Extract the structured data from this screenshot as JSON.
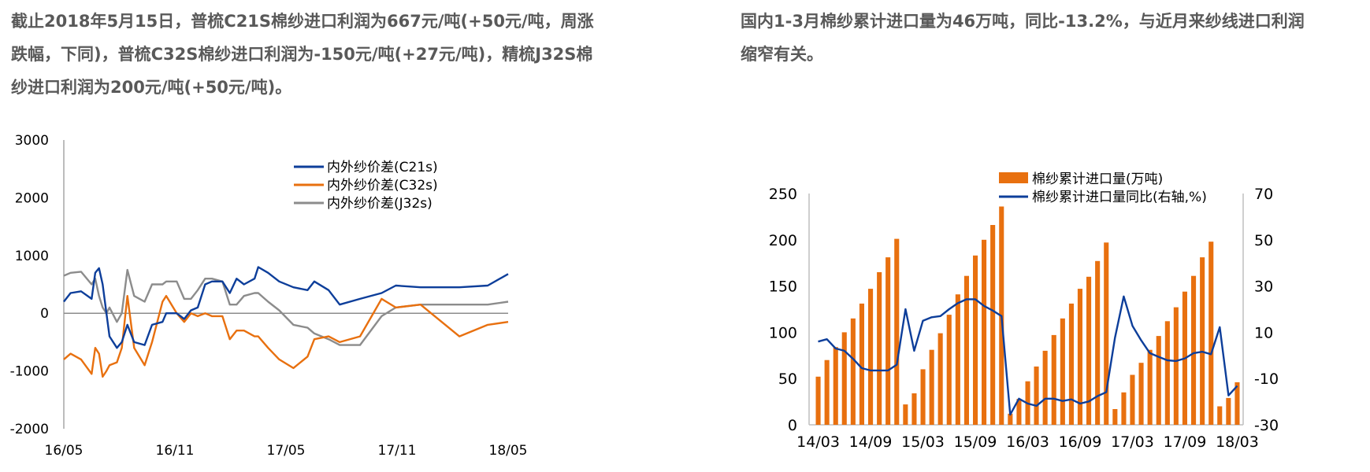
{
  "text_left": {
    "lines": [
      "截止2018年5月15日，普梳C21S棉纱进口利润为667元/吨(+50元/吨，周涨",
      "跌幅，下同)，普梳C32S棉纱进口利润为-150元/吨(+27元/吨)，精梳J32S棉",
      "纱进口利润为200元/吨(+50元/吨)。"
    ]
  },
  "text_right": {
    "lines": [
      "国内1-3月棉纱累计进口量为46万吨，同比-13.2%，与近月来纱线进口利润",
      "缩窄有关。"
    ]
  },
  "chart_data": [
    {
      "type": "line",
      "title": "",
      "xlabel": "",
      "ylabel": "",
      "ylim": [
        -2000,
        3000
      ],
      "yticks": [
        "3000",
        "2000",
        "1000",
        "0",
        "-1000",
        "-2000"
      ],
      "xticks": [
        "16/05",
        "16/11",
        "17/05",
        "17/11",
        "18/05"
      ],
      "xlim": [
        "2016-05-01",
        "2018-05-01"
      ],
      "grid": false,
      "legend": "top-right",
      "x": [
        "2016-05-01",
        "2016-05-12",
        "2016-05-29",
        "2016-06-16",
        "2016-06-22",
        "2016-06-28",
        "2016-07-04",
        "2016-07-10",
        "2016-07-15",
        "2016-07-27",
        "2016-08-05",
        "2016-08-14",
        "2016-08-25",
        "2016-09-12",
        "2016-09-24",
        "2016-10-11",
        "2016-10-17",
        "2016-11-04",
        "2016-11-16",
        "2016-11-27",
        "2016-12-08",
        "2016-12-20",
        "2017-01-01",
        "2017-01-18",
        "2017-01-30",
        "2017-02-11",
        "2017-02-23",
        "2017-03-10",
        "2017-03-16",
        "2017-04-02",
        "2017-04-20",
        "2017-05-13",
        "2017-06-06",
        "2017-06-17",
        "2017-07-10",
        "2017-07-28",
        "2017-09-01",
        "2017-10-06",
        "2017-10-29",
        "2017-12-09",
        "2018-02-12",
        "2018-03-28",
        "2018-05-01"
      ],
      "series": [
        {
          "name": "内外纱价差(C21s)",
          "color": "#0D3E9A",
          "values": [
            200,
            350,
            380,
            250,
            700,
            780,
            500,
            0,
            -400,
            -600,
            -500,
            -200,
            -500,
            -550,
            -200,
            -150,
            0,
            0,
            -100,
            50,
            100,
            500,
            550,
            550,
            350,
            600,
            500,
            600,
            800,
            700,
            550,
            450,
            400,
            550,
            400,
            150,
            250,
            350,
            480,
            450,
            450,
            480,
            680
          ]
        },
        {
          "name": "内外纱价差(C32s)",
          "color": "#E8700F",
          "values": [
            -800,
            -700,
            -800,
            -1050,
            -600,
            -700,
            -1100,
            -1000,
            -900,
            -850,
            -600,
            300,
            -600,
            -900,
            -500,
            200,
            300,
            0,
            -150,
            0,
            -50,
            0,
            -50,
            -50,
            -450,
            -300,
            -300,
            -400,
            -400,
            -600,
            -800,
            -950,
            -750,
            -450,
            -400,
            -500,
            -400,
            250,
            100,
            150,
            -400,
            -200,
            -150
          ]
        },
        {
          "name": "内外纱价差(J32s)",
          "color": "#8C8C8C",
          "values": [
            650,
            700,
            720,
            500,
            600,
            300,
            100,
            0,
            100,
            -150,
            0,
            750,
            300,
            200,
            500,
            500,
            550,
            550,
            250,
            250,
            400,
            600,
            600,
            550,
            150,
            150,
            300,
            350,
            350,
            200,
            50,
            -200,
            -250,
            -350,
            -450,
            -550,
            -550,
            -50,
            100,
            150,
            150,
            150,
            200
          ]
        }
      ]
    },
    {
      "type": "bar+line",
      "title": "",
      "xlabel": "",
      "ylabel": "",
      "ylim": [
        0,
        250
      ],
      "y2lim": [
        -30,
        70
      ],
      "yticks": [
        "250",
        "200",
        "150",
        "100",
        "50",
        "0"
      ],
      "y2ticks": [
        "70",
        "50",
        "30",
        "10",
        "-10",
        "-30"
      ],
      "xticks": [
        "14/03",
        "14/09",
        "15/03",
        "15/09",
        "16/03",
        "16/09",
        "17/03",
        "17/09",
        "18/03"
      ],
      "grid": false,
      "legend": "top",
      "categories": [
        "14/03",
        "14/04",
        "14/05",
        "14/06",
        "14/07",
        "14/08",
        "14/09",
        "14/10",
        "14/11",
        "14/12",
        "15/01",
        "15/02",
        "15/03",
        "15/04",
        "15/05",
        "15/06",
        "15/07",
        "15/08",
        "15/09",
        "15/10",
        "15/11",
        "15/12",
        "16/01",
        "16/02",
        "16/03",
        "16/04",
        "16/05",
        "16/06",
        "16/07",
        "16/08",
        "16/09",
        "16/10",
        "16/11",
        "16/12",
        "17/01",
        "17/02",
        "17/03",
        "17/04",
        "17/05",
        "17/06",
        "17/07",
        "17/08",
        "17/09",
        "17/10",
        "17/11",
        "17/12",
        "18/01",
        "18/02",
        "18/03"
      ],
      "series": [
        {
          "name": "棉纱累计进口量(万吨)",
          "type": "bar",
          "axis": "left",
          "color": "#E8700F",
          "values": [
            52,
            70,
            84,
            100,
            115,
            131,
            147,
            165,
            181,
            201,
            22,
            34,
            60,
            81,
            99,
            119,
            141,
            161,
            183,
            200,
            216,
            236,
            12,
            28,
            47,
            63,
            80,
            97,
            115,
            131,
            147,
            160,
            177,
            197,
            17,
            35,
            54,
            67,
            81,
            96,
            112,
            127,
            144,
            161,
            181,
            198,
            20,
            29,
            46
          ]
        },
        {
          "name": "棉纱累计进口量同比(右轴,%)",
          "type": "line",
          "axis": "right",
          "color": "#0D3E9A",
          "values": [
            6,
            7,
            3,
            2,
            -1.5,
            -5.5,
            -6.5,
            -6.5,
            -6.5,
            -4,
            20,
            2,
            15,
            16.5,
            17,
            20,
            22.6,
            24.3,
            24.3,
            21.4,
            19.4,
            17,
            -25.6,
            -18.7,
            -20.8,
            -21.8,
            -18.7,
            -18.7,
            -19.7,
            -19,
            -20.8,
            -19.9,
            -17.6,
            -15.9,
            7.7,
            25.5,
            12.8,
            6.5,
            1,
            -0.6,
            -2.1,
            -2.4,
            -1.3,
            1,
            1.6,
            0.5,
            12.2,
            -17.3,
            -13.2
          ]
        }
      ]
    }
  ]
}
